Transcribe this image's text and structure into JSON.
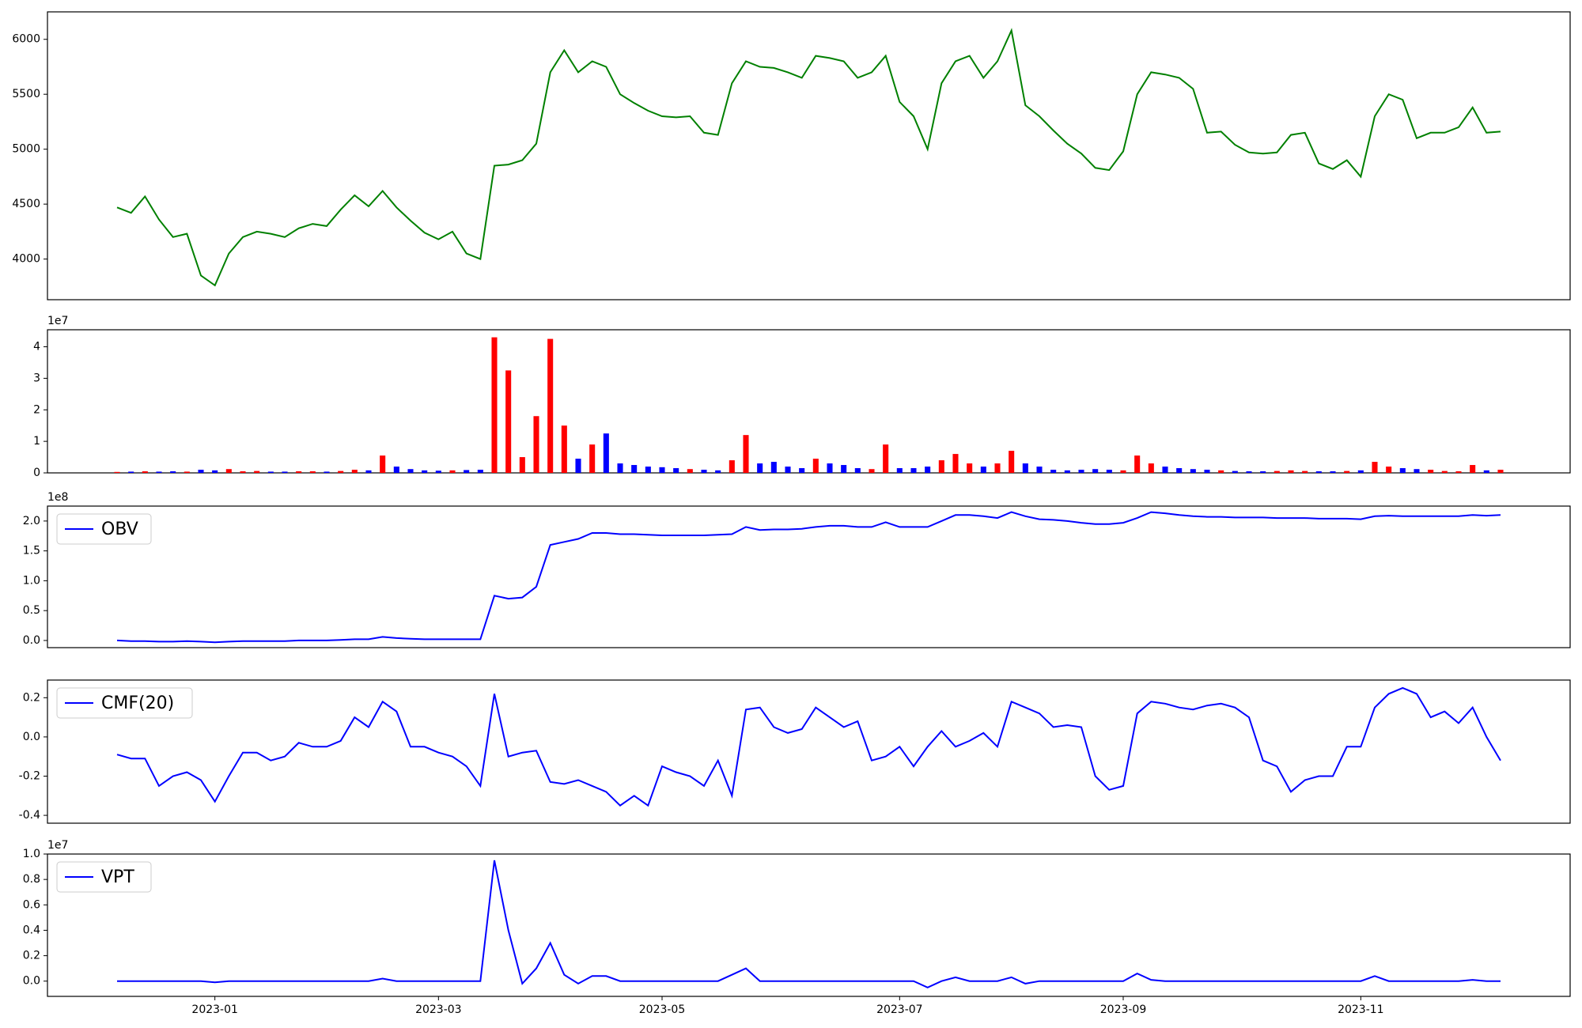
{
  "chart_data": [
    {
      "type": "line",
      "color": "green",
      "ylim": [
        3630,
        6250
      ],
      "yticks": [
        4000,
        4500,
        5000,
        5500,
        6000
      ],
      "values": [
        4470,
        4420,
        4570,
        4360,
        4200,
        4230,
        3850,
        3760,
        4050,
        4200,
        4250,
        4230,
        4200,
        4280,
        4320,
        4300,
        4450,
        4580,
        4480,
        4620,
        4470,
        4350,
        4240,
        4180,
        4250,
        4050,
        4000,
        4850,
        4860,
        4900,
        5050,
        5700,
        5900,
        5700,
        5800,
        5750,
        5500,
        5420,
        5350,
        5300,
        5290,
        5300,
        5150,
        5130,
        5600,
        5800,
        5750,
        5740,
        5700,
        5650,
        5850,
        5830,
        5800,
        5650,
        5700,
        5850,
        5430,
        5300,
        5000,
        5600,
        5800,
        5850,
        5650,
        5800,
        6080,
        5400,
        5300,
        5170,
        5050,
        4960,
        4830,
        4810,
        4980,
        5500,
        5700,
        5680,
        5650,
        5550,
        5150,
        5160,
        5040,
        4970,
        4960,
        4970,
        5130,
        5150,
        4870,
        4820,
        4900,
        4750,
        5300,
        5500,
        5450,
        5100,
        5150,
        5150,
        5200,
        5380,
        5150,
        5160
      ]
    },
    {
      "type": "bar",
      "offset": "1e7",
      "up_color": "red",
      "down_color": "blue",
      "ylim": [
        0,
        4.54
      ],
      "yticks": [
        0,
        1,
        2,
        3,
        4
      ],
      "values": [
        0.03,
        0.04,
        0.05,
        0.04,
        0.05,
        0.04,
        0.1,
        0.08,
        0.12,
        0.05,
        0.06,
        0.04,
        0.04,
        0.05,
        0.05,
        0.04,
        0.06,
        0.1,
        0.08,
        0.55,
        0.2,
        0.12,
        0.08,
        0.07,
        0.08,
        0.09,
        0.1,
        4.3,
        3.25,
        0.5,
        1.8,
        4.25,
        1.5,
        0.45,
        0.9,
        1.25,
        0.3,
        0.25,
        0.2,
        0.18,
        0.15,
        0.12,
        0.1,
        0.08,
        0.4,
        1.2,
        0.3,
        0.35,
        0.2,
        0.15,
        0.45,
        0.3,
        0.25,
        0.15,
        0.12,
        0.9,
        0.15,
        0.15,
        0.2,
        0.4,
        0.6,
        0.3,
        0.2,
        0.3,
        0.7,
        0.3,
        0.2,
        0.1,
        0.08,
        0.1,
        0.12,
        0.1,
        0.08,
        0.55,
        0.3,
        0.2,
        0.15,
        0.12,
        0.1,
        0.08,
        0.06,
        0.05,
        0.05,
        0.06,
        0.08,
        0.06,
        0.05,
        0.05,
        0.06,
        0.08,
        0.35,
        0.2,
        0.15,
        0.12,
        0.1,
        0.06,
        0.05,
        0.25,
        0.08,
        0.1
      ]
    },
    {
      "type": "line",
      "color": "blue",
      "name": "OBV",
      "offset": "1e8",
      "ylim": [
        -0.12,
        2.25
      ],
      "yticks": [
        {
          "value": 0,
          "label": "0.0"
        },
        {
          "value": 0.5,
          "label": "0.5"
        },
        {
          "value": 1,
          "label": "1.0"
        },
        {
          "value": 1.5,
          "label": "1.5"
        },
        {
          "value": 2,
          "label": "2.0"
        }
      ],
      "values": [
        0,
        -0.01,
        -0.01,
        -0.02,
        -0.02,
        -0.01,
        -0.02,
        -0.03,
        -0.02,
        -0.01,
        -0.01,
        -0.01,
        -0.01,
        0,
        0,
        0,
        0.01,
        0.02,
        0.02,
        0.06,
        0.04,
        0.03,
        0.02,
        0.02,
        0.02,
        0.02,
        0.02,
        0.75,
        0.7,
        0.72,
        0.9,
        1.6,
        1.65,
        1.7,
        1.8,
        1.8,
        1.78,
        1.78,
        1.77,
        1.76,
        1.76,
        1.76,
        1.76,
        1.77,
        1.78,
        1.9,
        1.85,
        1.86,
        1.86,
        1.87,
        1.9,
        1.92,
        1.92,
        1.9,
        1.9,
        1.98,
        1.9,
        1.9,
        1.9,
        2.0,
        2.1,
        2.1,
        2.08,
        2.05,
        2.15,
        2.08,
        2.03,
        2.02,
        2.0,
        1.97,
        1.95,
        1.95,
        1.97,
        2.05,
        2.15,
        2.13,
        2.1,
        2.08,
        2.07,
        2.07,
        2.06,
        2.06,
        2.06,
        2.05,
        2.05,
        2.05,
        2.04,
        2.04,
        2.04,
        2.03,
        2.08,
        2.09,
        2.08,
        2.08,
        2.08,
        2.08,
        2.08,
        2.1,
        2.09,
        2.1
      ]
    },
    {
      "type": "line",
      "color": "blue",
      "name": "CMF(20)",
      "ylim": [
        -0.44,
        0.29
      ],
      "yticks": [
        -0.4,
        -0.2,
        {
          "value": 0,
          "label": "0.0"
        },
        0.2
      ],
      "values": [
        -0.09,
        -0.11,
        -0.11,
        -0.25,
        -0.2,
        -0.18,
        -0.22,
        -0.33,
        -0.2,
        -0.08,
        -0.08,
        -0.12,
        -0.1,
        -0.03,
        -0.05,
        -0.05,
        -0.02,
        0.1,
        0.05,
        0.18,
        0.13,
        -0.05,
        -0.05,
        -0.08,
        -0.1,
        -0.15,
        -0.25,
        0.22,
        -0.1,
        -0.08,
        -0.07,
        -0.23,
        -0.24,
        -0.22,
        -0.25,
        -0.28,
        -0.35,
        -0.3,
        -0.35,
        -0.15,
        -0.18,
        -0.2,
        -0.25,
        -0.12,
        -0.3,
        0.14,
        0.15,
        0.05,
        0.02,
        0.04,
        0.15,
        0.1,
        0.05,
        0.08,
        -0.12,
        -0.1,
        -0.05,
        -0.15,
        -0.05,
        0.03,
        -0.05,
        -0.02,
        0.02,
        -0.05,
        0.18,
        0.15,
        0.12,
        0.05,
        0.06,
        0.05,
        -0.2,
        -0.27,
        -0.25,
        0.12,
        0.18,
        0.17,
        0.15,
        0.14,
        0.16,
        0.17,
        0.15,
        0.1,
        -0.12,
        -0.15,
        -0.28,
        -0.22,
        -0.2,
        -0.2,
        -0.05,
        -0.05,
        0.15,
        0.22,
        0.25,
        0.22,
        0.1,
        0.13,
        0.07,
        0.15,
        0,
        -0.12
      ]
    },
    {
      "type": "line",
      "color": "blue",
      "name": "VPT",
      "offset": "1e7",
      "ylim": [
        -0.12,
        1.0
      ],
      "yticks": [
        {
          "value": 0,
          "label": "0.0"
        },
        0.2,
        0.4,
        0.6,
        0.8,
        {
          "value": 1,
          "label": "1.0"
        }
      ],
      "values": [
        0,
        0,
        0,
        0,
        0,
        0,
        0,
        -0.01,
        0,
        0,
        0,
        0,
        0,
        0,
        0,
        0,
        0,
        0,
        0,
        0.02,
        0,
        0,
        0,
        0,
        0,
        0,
        0,
        0.95,
        0.4,
        -0.02,
        0.1,
        0.3,
        0.05,
        -0.02,
        0.04,
        0.04,
        0,
        0,
        0,
        0,
        0,
        0,
        0,
        0,
        0.05,
        0.1,
        0,
        0,
        0,
        0,
        0,
        0,
        0,
        0,
        0,
        0,
        0,
        0,
        -0.05,
        0,
        0.03,
        0,
        0,
        0,
        0.03,
        -0.02,
        0,
        0,
        0,
        0,
        0,
        0,
        0,
        0.06,
        0.01,
        0,
        0,
        0,
        0,
        0,
        0,
        0,
        0,
        0,
        0,
        0,
        0,
        0,
        0,
        0,
        0.04,
        0,
        0,
        0,
        0,
        0,
        0,
        0.01,
        0,
        0
      ],
      "categories": [
        null,
        null,
        null,
        null,
        null,
        null,
        null,
        "2023-01",
        null,
        null,
        null,
        null,
        null,
        null,
        null,
        null,
        null,
        null,
        null,
        null,
        null,
        null,
        null,
        "2023-03",
        null,
        null,
        null,
        null,
        null,
        null,
        null,
        null,
        null,
        null,
        null,
        null,
        null,
        null,
        null,
        "2023-05",
        null,
        null,
        null,
        null,
        null,
        null,
        null,
        null,
        null,
        null,
        null,
        null,
        null,
        null,
        null,
        null,
        "2023-07",
        null,
        null,
        null,
        null,
        null,
        null,
        null,
        null,
        null,
        null,
        null,
        null,
        null,
        null,
        null,
        "2023-09",
        null,
        null,
        null,
        null,
        null,
        null,
        null,
        null,
        null,
        null,
        null,
        null,
        null,
        null,
        null,
        null,
        "2023-11",
        null,
        null,
        null,
        null,
        null,
        null,
        null,
        null,
        null,
        null
      ]
    }
  ]
}
